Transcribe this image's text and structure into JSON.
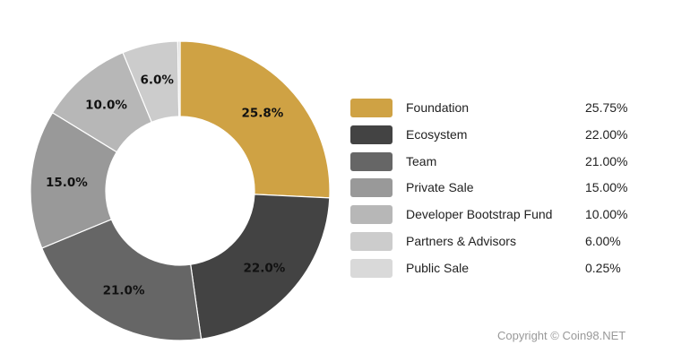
{
  "chart_data": {
    "type": "pie",
    "variant": "donut",
    "categories": [
      "Foundation",
      "Ecosystem",
      "Team",
      "Private Sale",
      "Developer Bootstrap Fund",
      "Partners & Advisors",
      "Public Sale"
    ],
    "values": [
      25.75,
      22.0,
      21.0,
      15.0,
      10.0,
      6.0,
      0.25
    ],
    "slice_labels": [
      "25.8%",
      "22.0%",
      "21.0%",
      "15.0%",
      "10.0%",
      "6.0%",
      ""
    ],
    "legend_values": [
      "25.75%",
      "22.00%",
      "21.00%",
      "15.00%",
      "10.00%",
      "6.00%",
      "0.25%"
    ],
    "colors": [
      "#cfa244",
      "#434343",
      "#666666",
      "#999999",
      "#b7b7b7",
      "#cccccc",
      "#d9d9d9"
    ],
    "legend_position": "right",
    "start_angle_deg": 0,
    "direction": "clockwise"
  },
  "footer": {
    "copyright": "Copyright © Coin98.NET"
  }
}
